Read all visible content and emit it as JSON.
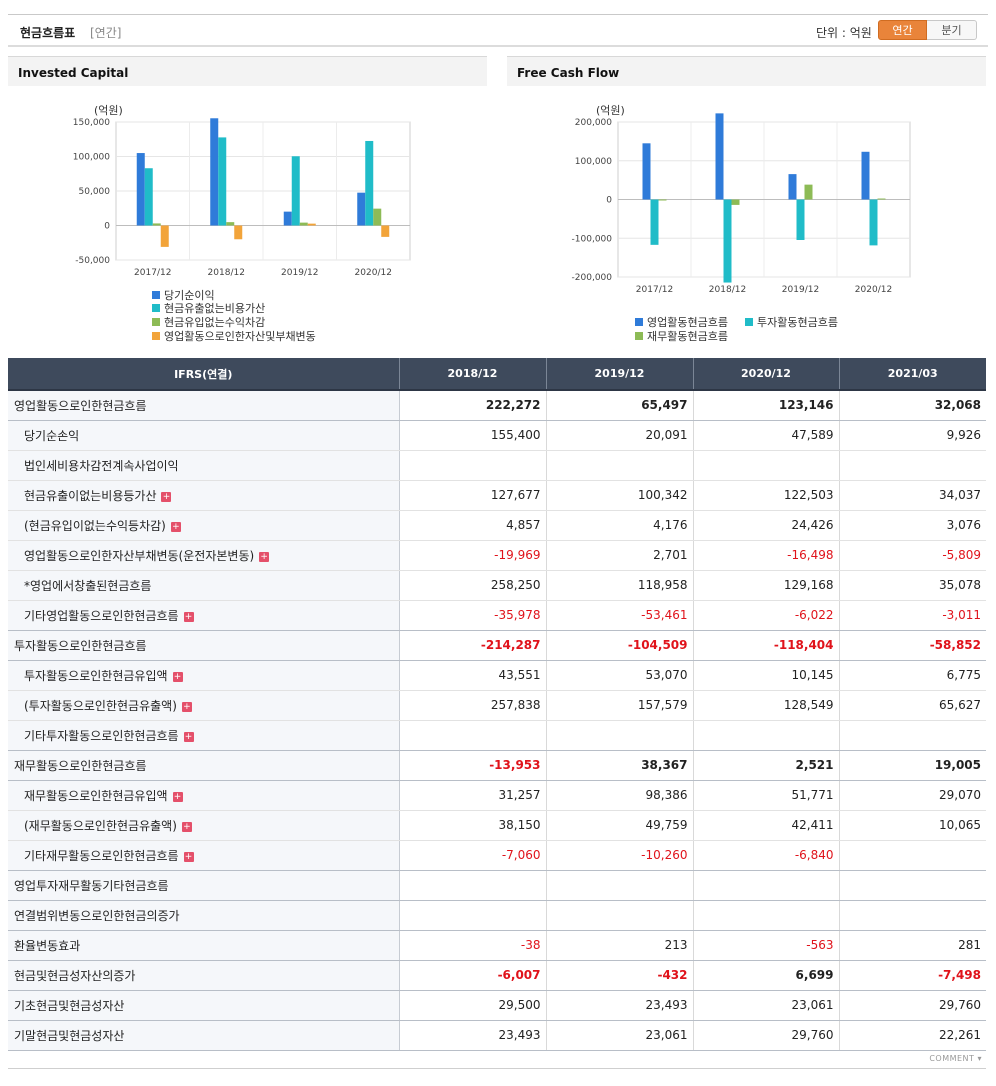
{
  "header": {
    "title": "현금흐름표",
    "period": "[연간]",
    "unit": "단위 : 억원",
    "toggle": [
      "연간",
      "분기"
    ],
    "accent": "#e9843a"
  },
  "charts": {
    "invested": {
      "title": "Invested Capital",
      "ylabel": "(억원)",
      "legend": [
        "당기순이익",
        "현금유출없는비용가산",
        "현금유입없는수익차감",
        "영업활동으로인한자산및부채변동"
      ]
    },
    "fcf": {
      "title": "Free Cash Flow",
      "ylabel": "(억원)",
      "legend": [
        "영업활동현금흐름",
        "투자활동현금흐름",
        "재무활동현금흐름"
      ]
    }
  },
  "chart_data": [
    {
      "type": "bar",
      "title": "Invested Capital",
      "ylabel": "(억원)",
      "categories": [
        "2017/12",
        "2018/12",
        "2019/12",
        "2020/12"
      ],
      "ylim": [
        -50000,
        150000
      ],
      "yticks": [
        -50000,
        0,
        50000,
        100000,
        150000
      ],
      "ytick_labels": [
        "-50,000",
        "0",
        "50,000",
        "100,000",
        "150,000"
      ],
      "series": [
        {
          "name": "당기순이익",
          "color": "#2f7bd9",
          "values": [
            105000,
            155400,
            20091,
            47589
          ]
        },
        {
          "name": "현금유출없는비용가산",
          "color": "#20bcc8",
          "values": [
            83000,
            127677,
            100342,
            122503
          ]
        },
        {
          "name": "현금유입없는수익차감",
          "color": "#8dbb56",
          "values": [
            3000,
            4857,
            4176,
            24426
          ]
        },
        {
          "name": "영업활동으로인한자산및부채변동",
          "color": "#f2a43a",
          "values": [
            -31000,
            -19969,
            2701,
            -16498
          ]
        }
      ],
      "legend_position": "bottom",
      "grid": true
    },
    {
      "type": "bar",
      "title": "Free Cash Flow",
      "ylabel": "(억원)",
      "categories": [
        "2017/12",
        "2018/12",
        "2019/12",
        "2020/12"
      ],
      "ylim": [
        -200000,
        200000
      ],
      "yticks": [
        -200000,
        -100000,
        0,
        100000,
        200000
      ],
      "ytick_labels": [
        "-200,000",
        "-100,000",
        "0",
        "100,000",
        "200,000"
      ],
      "series": [
        {
          "name": "영업활동현금흐름",
          "color": "#2f7bd9",
          "values": [
            145000,
            222272,
            65497,
            123146
          ]
        },
        {
          "name": "투자활동현금흐름",
          "color": "#20bcc8",
          "values": [
            -117000,
            -214287,
            -104509,
            -118404
          ]
        },
        {
          "name": "재무활동현금흐름",
          "color": "#8dbb56",
          "values": [
            0,
            -13953,
            38367,
            2521
          ]
        }
      ],
      "legend_position": "bottom",
      "grid": true
    }
  ],
  "table": {
    "headers": [
      "IFRS(연결)",
      "2018/12",
      "2019/12",
      "2020/12",
      "2021/03"
    ],
    "rows": [
      {
        "label": "영업활동으로인한현금흐름",
        "values": [
          "222,272",
          "65,497",
          "123,146",
          "32,068"
        ],
        "level": 0,
        "bold": true
      },
      {
        "label": "당기순손익",
        "values": [
          "155,400",
          "20,091",
          "47,589",
          "9,926"
        ],
        "level": 1
      },
      {
        "label": "법인세비용차감전계속사업이익",
        "values": [
          "",
          "",
          "",
          ""
        ],
        "level": 1
      },
      {
        "label": "현금유출이없는비용등가산",
        "values": [
          "127,677",
          "100,342",
          "122,503",
          "34,037"
        ],
        "level": 1,
        "plus": true
      },
      {
        "label": "(현금유입이없는수익등차감)",
        "values": [
          "4,857",
          "4,176",
          "24,426",
          "3,076"
        ],
        "level": 1,
        "plus": true
      },
      {
        "label": "영업활동으로인한자산부채변동(운전자본변동)",
        "values": [
          "-19,969",
          "2,701",
          "-16,498",
          "-5,809"
        ],
        "level": 1,
        "plus": true
      },
      {
        "label": "*영업에서창출된현금흐름",
        "values": [
          "258,250",
          "118,958",
          "129,168",
          "35,078"
        ],
        "level": 1
      },
      {
        "label": "기타영업활동으로인한현금흐름",
        "values": [
          "-35,978",
          "-53,461",
          "-6,022",
          "-3,011"
        ],
        "level": 1,
        "plus": true
      },
      {
        "label": "투자활동으로인한현금흐름",
        "values": [
          "-214,287",
          "-104,509",
          "-118,404",
          "-58,852"
        ],
        "level": 0,
        "bold": true
      },
      {
        "label": "투자활동으로인한현금유입액",
        "values": [
          "43,551",
          "53,070",
          "10,145",
          "6,775"
        ],
        "level": 1,
        "plus": true
      },
      {
        "label": "(투자활동으로인한현금유출액)",
        "values": [
          "257,838",
          "157,579",
          "128,549",
          "65,627"
        ],
        "level": 1,
        "plus": true
      },
      {
        "label": "기타투자활동으로인한현금흐름",
        "values": [
          "",
          "",
          "",
          ""
        ],
        "level": 1,
        "plus": true
      },
      {
        "label": "재무활동으로인한현금흐름",
        "values": [
          "-13,953",
          "38,367",
          "2,521",
          "19,005"
        ],
        "level": 0,
        "bold": true
      },
      {
        "label": "재무활동으로인한현금유입액",
        "values": [
          "31,257",
          "98,386",
          "51,771",
          "29,070"
        ],
        "level": 1,
        "plus": true
      },
      {
        "label": "(재무활동으로인한현금유출액)",
        "values": [
          "38,150",
          "49,759",
          "42,411",
          "10,065"
        ],
        "level": 1,
        "plus": true
      },
      {
        "label": "기타재무활동으로인한현금흐름",
        "values": [
          "-7,060",
          "-10,260",
          "-6,840",
          ""
        ],
        "level": 1,
        "plus": true
      },
      {
        "label": "영업투자재무활동기타현금흐름",
        "values": [
          "",
          "",
          "",
          ""
        ],
        "level": 0
      },
      {
        "label": "연결범위변동으로인한현금의증가",
        "values": [
          "",
          "",
          "",
          ""
        ],
        "level": 0
      },
      {
        "label": "환율변동효과",
        "values": [
          "-38",
          "213",
          "-563",
          "281"
        ],
        "level": 0
      },
      {
        "label": "현금및현금성자산의증가",
        "values": [
          "-6,007",
          "-432",
          "6,699",
          "-7,498"
        ],
        "level": 0,
        "bold": true
      },
      {
        "label": "기초현금및현금성자산",
        "values": [
          "29,500",
          "23,493",
          "23,061",
          "29,760"
        ],
        "level": 0
      },
      {
        "label": "기말현금및현금성자산",
        "values": [
          "23,493",
          "23,061",
          "29,760",
          "22,261"
        ],
        "level": 0
      }
    ]
  },
  "footer": {
    "comment": "COMMENT"
  }
}
